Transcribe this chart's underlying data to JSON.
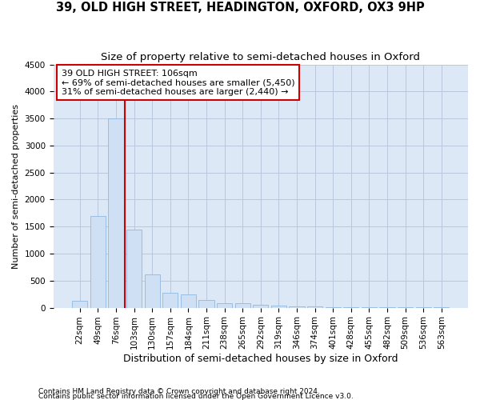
{
  "title1": "39, OLD HIGH STREET, HEADINGTON, OXFORD, OX3 9HP",
  "title2": "Size of property relative to semi-detached houses in Oxford",
  "xlabel": "Distribution of semi-detached houses by size in Oxford",
  "ylabel": "Number of semi-detached properties",
  "footnote1": "Contains HM Land Registry data © Crown copyright and database right 2024.",
  "footnote2": "Contains public sector information licensed under the Open Government Licence v3.0.",
  "annotation_title": "39 OLD HIGH STREET: 106sqm",
  "annotation_line1": "← 69% of semi-detached houses are smaller (5,450)",
  "annotation_line2": "31% of semi-detached houses are larger (2,440) →",
  "bar_color": "#cfe0f5",
  "bar_edge_color": "#8fb8e0",
  "red_line_color": "#cc0000",
  "annotation_box_color": "#cc0000",
  "background_color": "#ffffff",
  "plot_bg_color": "#dce8f5",
  "grid_color": "#b8c8dc",
  "categories": [
    "22sqm",
    "49sqm",
    "76sqm",
    "103sqm",
    "130sqm",
    "157sqm",
    "184sqm",
    "211sqm",
    "238sqm",
    "265sqm",
    "292sqm",
    "319sqm",
    "346sqm",
    "374sqm",
    "401sqm",
    "428sqm",
    "455sqm",
    "482sqm",
    "509sqm",
    "536sqm",
    "563sqm"
  ],
  "values": [
    120,
    1700,
    3500,
    1450,
    620,
    270,
    250,
    140,
    90,
    80,
    55,
    40,
    30,
    20,
    15,
    10,
    8,
    6,
    5,
    4,
    3
  ],
  "ylim": [
    0,
    4500
  ],
  "yticks": [
    0,
    500,
    1000,
    1500,
    2000,
    2500,
    3000,
    3500,
    4000,
    4500
  ],
  "red_line_x": 2.5,
  "title1_fontsize": 10.5,
  "title2_fontsize": 9.5,
  "xlabel_fontsize": 9,
  "ylabel_fontsize": 8,
  "tick_fontsize": 7.5,
  "annotation_fontsize": 8,
  "footnote_fontsize": 6.5
}
